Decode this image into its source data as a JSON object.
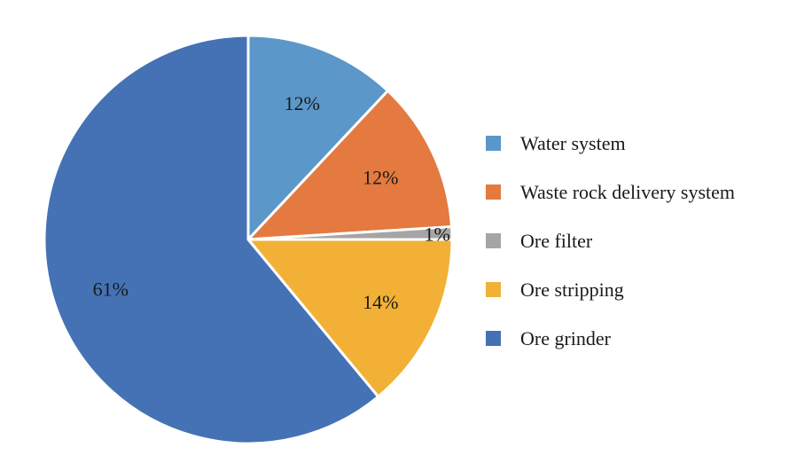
{
  "chart_data": {
    "type": "pie",
    "title": "",
    "start_angle_deg": 0,
    "direction": "clockwise",
    "legend_position": "right",
    "slices": [
      {
        "name": "Water system",
        "value": 12,
        "label": "12%",
        "color": "#5B97C9"
      },
      {
        "name": "Waste rock delivery system",
        "value": 12,
        "label": "12%",
        "color": "#E47A3F"
      },
      {
        "name": "Ore filter",
        "value": 1,
        "label": "1%",
        "color": "#A5A5A5"
      },
      {
        "name": "Ore stripping",
        "value": 14,
        "label": "14%",
        "color": "#F2B136"
      },
      {
        "name": "Ore grinder",
        "value": 61,
        "label": "61%",
        "color": "#4472B5"
      }
    ]
  }
}
